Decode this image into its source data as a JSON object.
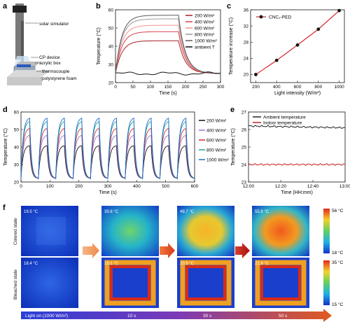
{
  "panels": {
    "a": {
      "label": "a",
      "parts": [
        "solar simulator",
        "CP device",
        "acrylic box",
        "thermocouple",
        "polystyrene foam"
      ]
    },
    "f": {
      "label": "f",
      "row_labels": [
        "Colored state",
        "Bleached state"
      ],
      "colored_temps": [
        "19.5 °C",
        "39.8 °C",
        "49.7 °C",
        "55.8 °C"
      ],
      "bleached_temps": [
        "18.4 °C",
        "19.1 °C",
        "20.5 °C",
        "22.9 °C"
      ],
      "scale_colored": {
        "max": "56 °C",
        "min": "18 °C"
      },
      "scale_bleached": {
        "max": "35 °C",
        "min": "15 °C"
      },
      "timeline": [
        "Light on (1000 W/m²)",
        "10 s",
        "30 s",
        "50 s"
      ]
    }
  },
  "chart_data": [
    {
      "id": "b",
      "label": "b",
      "type": "line",
      "xlabel": "Time (s)",
      "ylabel": "Temperature (°C)",
      "xlim": [
        0,
        300
      ],
      "ylim": [
        20,
        60
      ],
      "xticks": [
        0,
        50,
        100,
        150,
        200,
        250,
        300
      ],
      "yticks": [
        20,
        30,
        40,
        50,
        60
      ],
      "series": [
        {
          "name": "200 W/m²",
          "color": "#a81d24",
          "plateau": 43
        },
        {
          "name": "400 W/m²",
          "color": "#d6404a",
          "plateau": 48
        },
        {
          "name": "600 W/m²",
          "color": "#f09090",
          "plateau": 51.5
        },
        {
          "name": "800 W/m²",
          "color": "#9a9a9a",
          "plateau": 55
        },
        {
          "name": "1000 W/m²",
          "color": "#5a5a5a",
          "plateau": 57
        },
        {
          "name": "ambient T",
          "color": "#111111",
          "plateau": 25
        }
      ],
      "light_off_time": 180
    },
    {
      "id": "c",
      "label": "c",
      "type": "line",
      "xlabel": "Light intensity (W/m²)",
      "ylabel": "Temperature increase (°C)",
      "xlim": [
        150,
        1050
      ],
      "ylim": [
        18,
        36
      ],
      "xticks": [
        200,
        400,
        600,
        800,
        1000
      ],
      "yticks": [
        20,
        24,
        28,
        32,
        36
      ],
      "legend": "CNC₂-PED",
      "x": [
        200,
        400,
        600,
        800,
        1000
      ],
      "y": [
        20.0,
        23.5,
        27.3,
        31.2,
        35.8
      ]
    },
    {
      "id": "d",
      "label": "d",
      "type": "line",
      "xlabel": "Time (s)",
      "ylabel": "Temperature (°C)",
      "xlim": [
        0,
        600
      ],
      "ylim": [
        20,
        60
      ],
      "xticks": [
        0,
        100,
        200,
        300,
        400,
        500,
        600
      ],
      "yticks": [
        20,
        30,
        40,
        50,
        60
      ],
      "cycles": 10,
      "period": 60,
      "series": [
        {
          "name": "200 W/m²",
          "color": "#111111",
          "peak": 41
        },
        {
          "name": "400 W/m²",
          "color": "#a070c8",
          "peak": 47
        },
        {
          "name": "600 W/m²",
          "color": "#d6262a",
          "peak": 51
        },
        {
          "name": "800 W/m²",
          "color": "#20a0a0",
          "peak": 55
        },
        {
          "name": "1000 W/m²",
          "color": "#1f6fc8",
          "peak": 57
        }
      ]
    },
    {
      "id": "e",
      "label": "e",
      "type": "line",
      "xlabel": "Time (HH:mm)",
      "ylabel": "Temperature (°C)",
      "xlim": [
        0,
        60
      ],
      "ylim": [
        23,
        27
      ],
      "xticks": [
        0,
        20,
        40,
        60
      ],
      "xticklabels": [
        "12:00",
        "12:20",
        "12:40",
        "13:00"
      ],
      "yticks": [
        23,
        24,
        25,
        26,
        27
      ],
      "series": [
        {
          "name": "Ambient temperature",
          "color": "#222222",
          "level": 26.2
        },
        {
          "name": "Indoor temperature",
          "color": "#c81e1e",
          "level": 24.0
        }
      ]
    }
  ]
}
